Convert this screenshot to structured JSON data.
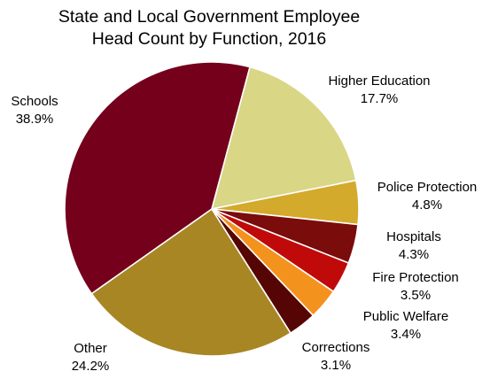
{
  "chart_data": {
    "type": "pie",
    "title": "State and Local Government Employee Head Count by Function, 2016",
    "title_lines": [
      "State and Local Government Employee",
      "Head Count by Function, 2016"
    ],
    "start_angle_deg": 15,
    "direction": "clockwise",
    "slices": [
      {
        "label": "Higher Education",
        "value_text": "17.7%",
        "value": 17.7,
        "color": "#D9D686"
      },
      {
        "label": "Police Protection",
        "value_text": "4.8%",
        "value": 4.8,
        "color": "#D4AA2C"
      },
      {
        "label": "Hospitals",
        "value_text": "4.3%",
        "value": 4.3,
        "color": "#7A0C0C"
      },
      {
        "label": "Fire Protection",
        "value_text": "3.5%",
        "value": 3.5,
        "color": "#C00A0A"
      },
      {
        "label": "Public Welfare",
        "value_text": "3.4%",
        "value": 3.4,
        "color": "#F4921E"
      },
      {
        "label": "Corrections",
        "value_text": "3.1%",
        "value": 3.1,
        "color": "#560505"
      },
      {
        "label": "Other",
        "value_text": "24.2%",
        "value": 24.2,
        "color": "#A88624"
      },
      {
        "label": "Schools",
        "value_text": "38.9%",
        "value": 38.9,
        "color": "#74001B"
      }
    ]
  }
}
